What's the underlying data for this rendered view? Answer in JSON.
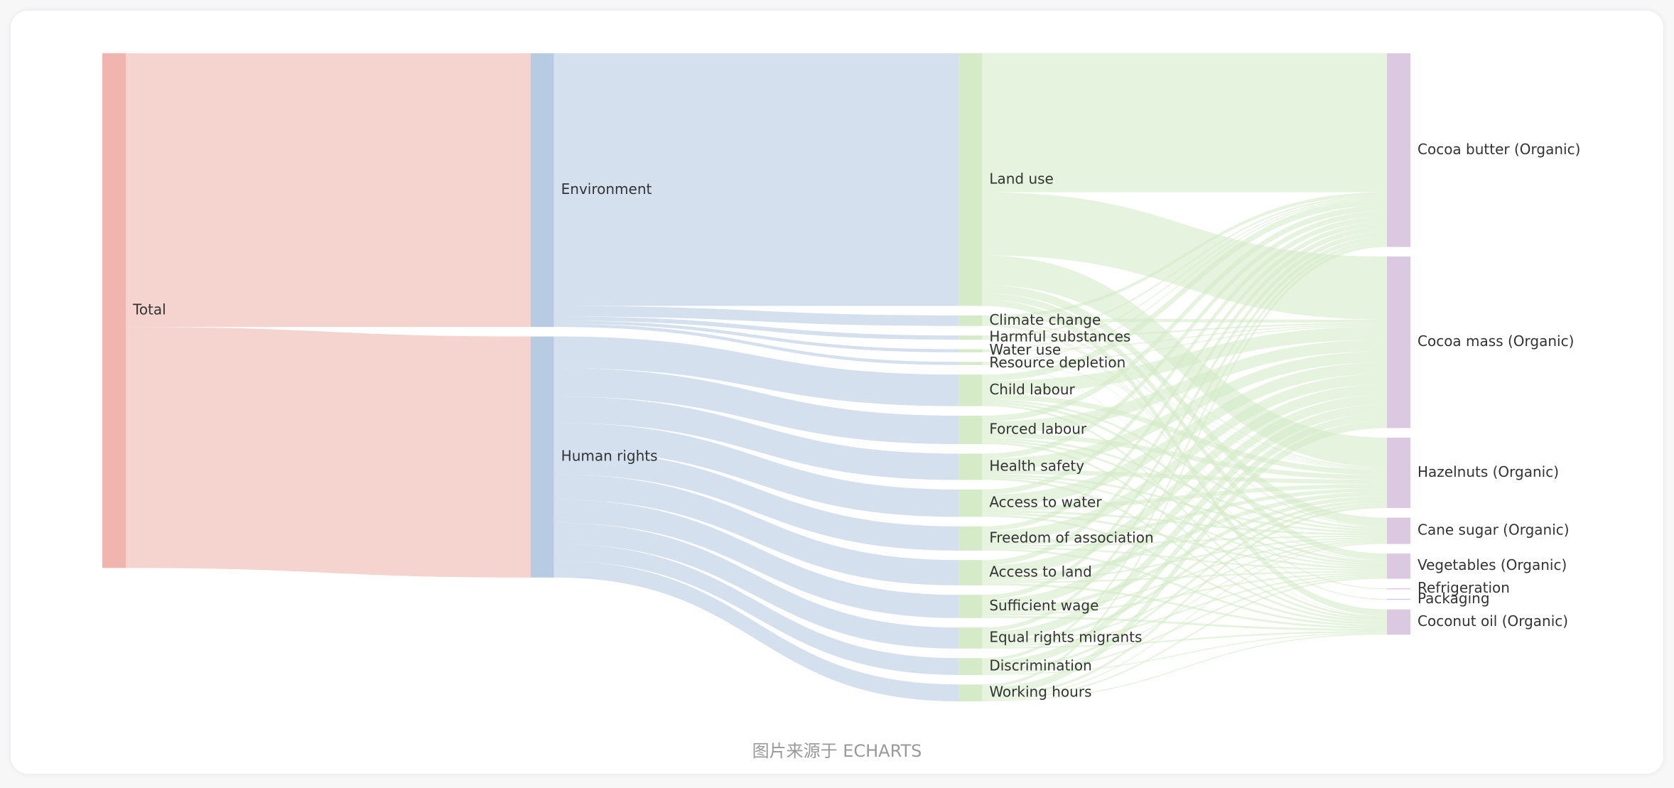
{
  "chart_data": {
    "type": "sankey",
    "source_note": "图片来源于 ECHARTS",
    "level_colors": [
      "#efb5ae",
      "#b7cce3",
      "#d5ebc8",
      "#dbc9e1"
    ],
    "link_opacity": 0.6,
    "nodes": [
      "Total",
      "Environment",
      "Human rights",
      "Land use",
      "Climate change",
      "Harmful substances",
      "Water use",
      "Resource depletion",
      "Child labour",
      "Forced labour",
      "Health safety",
      "Access to water",
      "Freedom of association",
      "Access to land",
      "Sufficient wage",
      "Equal rights migrants",
      "Discrimination",
      "Working hours",
      "Cocoa butter (Organic)",
      "Cocoa mass (Organic)",
      "Hazelnuts (Organic)",
      "Cane sugar (Organic)",
      "Vegetables (Organic)",
      "Refrigeration",
      "Packaging",
      "Coconut oil (Organic)"
    ],
    "links": [
      {
        "source": 0,
        "target": 1,
        "value": 260
      },
      {
        "source": 0,
        "target": 2,
        "value": 229
      },
      {
        "source": 1,
        "target": 3,
        "value": 240
      },
      {
        "source": 1,
        "target": 4,
        "value": 10
      },
      {
        "source": 1,
        "target": 5,
        "value": 4
      },
      {
        "source": 1,
        "target": 6,
        "value": 3
      },
      {
        "source": 1,
        "target": 7,
        "value": 3
      },
      {
        "source": 2,
        "target": 8,
        "value": 30
      },
      {
        "source": 2,
        "target": 9,
        "value": 27
      },
      {
        "source": 2,
        "target": 10,
        "value": 25
      },
      {
        "source": 2,
        "target": 11,
        "value": 26
      },
      {
        "source": 2,
        "target": 12,
        "value": 23
      },
      {
        "source": 2,
        "target": 13,
        "value": 24
      },
      {
        "source": 2,
        "target": 14,
        "value": 22
      },
      {
        "source": 2,
        "target": 15,
        "value": 20
      },
      {
        "source": 2,
        "target": 16,
        "value": 16
      },
      {
        "source": 2,
        "target": 17,
        "value": 16
      },
      {
        "source": 3,
        "target": 18,
        "value": 132
      },
      {
        "source": 3,
        "target": 19,
        "value": 60
      },
      {
        "source": 3,
        "target": 20,
        "value": 28
      },
      {
        "source": 3,
        "target": 21,
        "value": 8
      },
      {
        "source": 3,
        "target": 22,
        "value": 6
      },
      {
        "source": 3,
        "target": 25,
        "value": 6
      },
      {
        "source": 4,
        "target": 18,
        "value": 3
      },
      {
        "source": 4,
        "target": 19,
        "value": 3
      },
      {
        "source": 4,
        "target": 20,
        "value": 1
      },
      {
        "source": 4,
        "target": 21,
        "value": 1
      },
      {
        "source": 4,
        "target": 23,
        "value": 1
      },
      {
        "source": 4,
        "target": 24,
        "value": 1
      },
      {
        "source": 5,
        "target": 18,
        "value": 1.5
      },
      {
        "source": 5,
        "target": 19,
        "value": 1.5
      },
      {
        "source": 5,
        "target": 20,
        "value": 0.5
      },
      {
        "source": 5,
        "target": 22,
        "value": 0.5
      },
      {
        "source": 6,
        "target": 18,
        "value": 1
      },
      {
        "source": 6,
        "target": 19,
        "value": 1
      },
      {
        "source": 6,
        "target": 20,
        "value": 0.5
      },
      {
        "source": 6,
        "target": 22,
        "value": 0.5
      },
      {
        "source": 7,
        "target": 18,
        "value": 1
      },
      {
        "source": 7,
        "target": 19,
        "value": 1
      },
      {
        "source": 7,
        "target": 20,
        "value": 0.5
      },
      {
        "source": 7,
        "target": 25,
        "value": 0.5
      },
      {
        "source": 8,
        "target": 18,
        "value": 6
      },
      {
        "source": 8,
        "target": 19,
        "value": 12.5
      },
      {
        "source": 8,
        "target": 20,
        "value": 5
      },
      {
        "source": 8,
        "target": 21,
        "value": 2
      },
      {
        "source": 8,
        "target": 22,
        "value": 2.5
      },
      {
        "source": 8,
        "target": 25,
        "value": 2
      },
      {
        "source": 9,
        "target": 18,
        "value": 5.5
      },
      {
        "source": 9,
        "target": 19,
        "value": 11
      },
      {
        "source": 9,
        "target": 20,
        "value": 4.5
      },
      {
        "source": 9,
        "target": 21,
        "value": 2
      },
      {
        "source": 9,
        "target": 22,
        "value": 2
      },
      {
        "source": 9,
        "target": 25,
        "value": 2
      },
      {
        "source": 10,
        "target": 18,
        "value": 5
      },
      {
        "source": 10,
        "target": 19,
        "value": 10.5
      },
      {
        "source": 10,
        "target": 20,
        "value": 4
      },
      {
        "source": 10,
        "target": 21,
        "value": 2
      },
      {
        "source": 10,
        "target": 22,
        "value": 1.5
      },
      {
        "source": 10,
        "target": 25,
        "value": 2
      },
      {
        "source": 11,
        "target": 18,
        "value": 5
      },
      {
        "source": 11,
        "target": 19,
        "value": 11
      },
      {
        "source": 11,
        "target": 20,
        "value": 4
      },
      {
        "source": 11,
        "target": 21,
        "value": 2
      },
      {
        "source": 11,
        "target": 22,
        "value": 2
      },
      {
        "source": 11,
        "target": 25,
        "value": 2
      },
      {
        "source": 12,
        "target": 18,
        "value": 4.5
      },
      {
        "source": 12,
        "target": 19,
        "value": 10
      },
      {
        "source": 12,
        "target": 20,
        "value": 3.5
      },
      {
        "source": 12,
        "target": 21,
        "value": 1.5
      },
      {
        "source": 12,
        "target": 22,
        "value": 1.5
      },
      {
        "source": 12,
        "target": 25,
        "value": 2
      },
      {
        "source": 13,
        "target": 18,
        "value": 5
      },
      {
        "source": 13,
        "target": 19,
        "value": 10
      },
      {
        "source": 13,
        "target": 20,
        "value": 4
      },
      {
        "source": 13,
        "target": 21,
        "value": 1.5
      },
      {
        "source": 13,
        "target": 22,
        "value": 1.5
      },
      {
        "source": 13,
        "target": 25,
        "value": 2
      },
      {
        "source": 14,
        "target": 18,
        "value": 4.5
      },
      {
        "source": 14,
        "target": 19,
        "value": 9
      },
      {
        "source": 14,
        "target": 20,
        "value": 3.5
      },
      {
        "source": 14,
        "target": 21,
        "value": 1.5
      },
      {
        "source": 14,
        "target": 22,
        "value": 1.5
      },
      {
        "source": 14,
        "target": 25,
        "value": 2
      },
      {
        "source": 15,
        "target": 18,
        "value": 4
      },
      {
        "source": 15,
        "target": 19,
        "value": 8.5
      },
      {
        "source": 15,
        "target": 20,
        "value": 3
      },
      {
        "source": 15,
        "target": 21,
        "value": 1.5
      },
      {
        "source": 15,
        "target": 22,
        "value": 1.5
      },
      {
        "source": 15,
        "target": 25,
        "value": 1.5
      },
      {
        "source": 16,
        "target": 18,
        "value": 3
      },
      {
        "source": 16,
        "target": 19,
        "value": 7
      },
      {
        "source": 16,
        "target": 20,
        "value": 2.5
      },
      {
        "source": 16,
        "target": 21,
        "value": 1
      },
      {
        "source": 16,
        "target": 22,
        "value": 1.5
      },
      {
        "source": 16,
        "target": 25,
        "value": 1
      },
      {
        "source": 17,
        "target": 18,
        "value": 3
      },
      {
        "source": 17,
        "target": 19,
        "value": 7
      },
      {
        "source": 17,
        "target": 20,
        "value": 2.5
      },
      {
        "source": 17,
        "target": 21,
        "value": 1
      },
      {
        "source": 17,
        "target": 22,
        "value": 1.5
      },
      {
        "source": 17,
        "target": 25,
        "value": 1
      }
    ]
  }
}
